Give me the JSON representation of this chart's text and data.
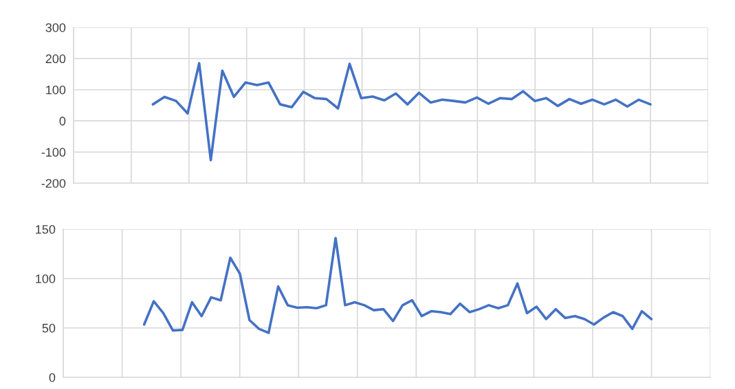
{
  "chart_data": [
    {
      "type": "line",
      "categories": [
        null,
        null,
        null,
        null,
        null,
        null,
        null,
        null,
        null,
        null,
        null,
        null,
        null,
        null,
        null,
        null,
        null,
        null,
        null,
        null,
        null,
        null,
        null,
        null,
        null,
        null,
        null,
        null,
        null,
        null,
        null,
        null,
        null,
        null,
        null,
        null,
        null,
        null,
        null,
        null,
        null,
        null,
        null,
        null
      ],
      "ylim": [
        -200,
        300
      ],
      "yticks": [
        -200,
        -100,
        0,
        100,
        200,
        300
      ],
      "grid": true,
      "tick_labels": "y",
      "series": [
        {
          "color": "#4472c4",
          "values": [
            53,
            77,
            64,
            24,
            185,
            -126,
            161,
            77,
            123,
            115,
            123,
            53,
            44,
            93,
            73,
            70,
            40,
            183,
            73,
            78,
            66,
            88,
            53,
            90,
            59,
            68,
            64,
            59,
            75,
            55,
            73,
            70,
            95,
            64,
            73,
            48,
            70,
            55,
            68,
            53,
            68,
            46,
            68,
            53
          ]
        }
      ]
    },
    {
      "type": "line",
      "categories": [
        null,
        null,
        null,
        null,
        null,
        null,
        null,
        null,
        null,
        null,
        null,
        null,
        null,
        null,
        null,
        null,
        null,
        null,
        null,
        null,
        null,
        null,
        null,
        null,
        null,
        null,
        null,
        null,
        null,
        null,
        null,
        null,
        null,
        null,
        null,
        null,
        null,
        null,
        null,
        null,
        null,
        null,
        null,
        null,
        null,
        null,
        null,
        null,
        null,
        null,
        null,
        null,
        null,
        null
      ],
      "ylim": [
        0,
        150
      ],
      "yticks": [
        0,
        50,
        100,
        150
      ],
      "grid": true,
      "tick_labels": "y",
      "series": [
        {
          "color": "#4472c4",
          "values": [
            53.5,
            77,
            65,
            47.5,
            48,
            76,
            62,
            81,
            78,
            121,
            105,
            58,
            49,
            45,
            92,
            73,
            70.5,
            71,
            70,
            73,
            141,
            73,
            76,
            73,
            68,
            69,
            57,
            73,
            78,
            62,
            67,
            66,
            64,
            74.5,
            66,
            69,
            73,
            70,
            73,
            95,
            65,
            71.5,
            59,
            69,
            60,
            62,
            59,
            53.5,
            60.5,
            66,
            62,
            49,
            67,
            59
          ]
        }
      ]
    }
  ]
}
